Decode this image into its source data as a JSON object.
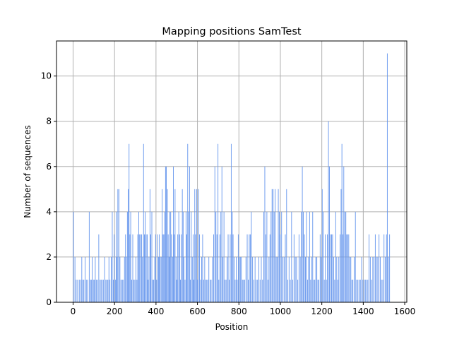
{
  "chart_data": {
    "type": "bar",
    "title": "Mapping positions SamTest",
    "xlabel": "Position",
    "ylabel": "Number of sequences",
    "xlim": [
      -80,
      1610
    ],
    "ylim": [
      0,
      11.55
    ],
    "xticks": [
      0,
      200,
      400,
      600,
      800,
      1000,
      1200,
      1400,
      1600
    ],
    "xtick_labels": [
      "0",
      "200",
      "400",
      "600",
      "800",
      "1000",
      "1200",
      "1400",
      "1600"
    ],
    "yticks": [
      0,
      2,
      4,
      6,
      8,
      10
    ],
    "ytick_labels": [
      "0",
      "2",
      "4",
      "6",
      "8",
      "10"
    ],
    "grid": true,
    "bar_color": "#6495ED",
    "bars": [
      [
        2,
        4
      ],
      [
        9,
        2
      ],
      [
        15,
        1
      ],
      [
        22,
        1
      ],
      [
        30,
        1
      ],
      [
        38,
        1
      ],
      [
        42,
        2
      ],
      [
        47,
        1
      ],
      [
        52,
        1
      ],
      [
        58,
        2
      ],
      [
        64,
        1
      ],
      [
        70,
        1
      ],
      [
        78,
        4
      ],
      [
        84,
        1
      ],
      [
        88,
        1
      ],
      [
        92,
        2
      ],
      [
        98,
        1
      ],
      [
        103,
        1
      ],
      [
        107,
        2
      ],
      [
        112,
        1
      ],
      [
        118,
        1
      ],
      [
        124,
        3
      ],
      [
        130,
        1
      ],
      [
        135,
        1
      ],
      [
        140,
        1
      ],
      [
        146,
        1
      ],
      [
        152,
        2
      ],
      [
        158,
        1
      ],
      [
        163,
        1
      ],
      [
        168,
        1
      ],
      [
        173,
        2
      ],
      [
        178,
        1
      ],
      [
        184,
        2
      ],
      [
        189,
        4
      ],
      [
        194,
        1
      ],
      [
        198,
        3
      ],
      [
        204,
        1
      ],
      [
        208,
        4
      ],
      [
        212,
        2
      ],
      [
        216,
        5
      ],
      [
        221,
        5
      ],
      [
        226,
        2
      ],
      [
        231,
        1
      ],
      [
        237,
        1
      ],
      [
        241,
        1
      ],
      [
        248,
        2
      ],
      [
        253,
        3
      ],
      [
        257,
        2
      ],
      [
        262,
        4
      ],
      [
        266,
        5
      ],
      [
        270,
        7
      ],
      [
        274,
        3
      ],
      [
        278,
        4
      ],
      [
        283,
        1
      ],
      [
        288,
        3
      ],
      [
        293,
        1
      ],
      [
        298,
        1
      ],
      [
        303,
        2
      ],
      [
        308,
        1
      ],
      [
        312,
        3
      ],
      [
        317,
        4
      ],
      [
        321,
        3
      ],
      [
        326,
        3
      ],
      [
        331,
        3
      ],
      [
        335,
        2
      ],
      [
        340,
        7
      ],
      [
        344,
        3
      ],
      [
        348,
        4
      ],
      [
        353,
        3
      ],
      [
        358,
        3
      ],
      [
        362,
        1
      ],
      [
        366,
        2
      ],
      [
        371,
        5
      ],
      [
        375,
        3
      ],
      [
        380,
        4
      ],
      [
        385,
        1
      ],
      [
        389,
        1
      ],
      [
        394,
        2
      ],
      [
        398,
        3
      ],
      [
        403,
        1
      ],
      [
        408,
        3
      ],
      [
        412,
        2
      ],
      [
        416,
        3
      ],
      [
        420,
        2
      ],
      [
        425,
        2
      ],
      [
        430,
        5
      ],
      [
        434,
        3
      ],
      [
        438,
        3
      ],
      [
        442,
        4
      ],
      [
        446,
        6
      ],
      [
        450,
        6
      ],
      [
        455,
        5
      ],
      [
        459,
        3
      ],
      [
        463,
        2
      ],
      [
        467,
        4
      ],
      [
        471,
        4
      ],
      [
        475,
        3
      ],
      [
        480,
        2
      ],
      [
        484,
        6
      ],
      [
        488,
        3
      ],
      [
        492,
        5
      ],
      [
        497,
        2
      ],
      [
        501,
        1
      ],
      [
        505,
        3
      ],
      [
        510,
        4
      ],
      [
        514,
        3
      ],
      [
        518,
        1
      ],
      [
        522,
        3
      ],
      [
        527,
        5
      ],
      [
        531,
        4
      ],
      [
        535,
        2
      ],
      [
        540,
        1
      ],
      [
        545,
        4
      ],
      [
        549,
        3
      ],
      [
        553,
        7
      ],
      [
        557,
        4
      ],
      [
        562,
        6
      ],
      [
        566,
        1
      ],
      [
        570,
        4
      ],
      [
        575,
        2
      ],
      [
        579,
        3
      ],
      [
        583,
        1
      ],
      [
        587,
        5
      ],
      [
        591,
        3
      ],
      [
        596,
        5
      ],
      [
        600,
        1
      ],
      [
        605,
        5
      ],
      [
        610,
        3
      ],
      [
        615,
        1
      ],
      [
        620,
        2
      ],
      [
        625,
        3
      ],
      [
        630,
        1
      ],
      [
        635,
        2
      ],
      [
        640,
        1
      ],
      [
        645,
        1
      ],
      [
        650,
        1
      ],
      [
        655,
        2
      ],
      [
        661,
        1
      ],
      [
        666,
        1
      ],
      [
        672,
        2
      ],
      [
        678,
        3
      ],
      [
        684,
        6
      ],
      [
        689,
        4
      ],
      [
        694,
        3
      ],
      [
        699,
        7
      ],
      [
        703,
        1
      ],
      [
        708,
        3
      ],
      [
        713,
        4
      ],
      [
        718,
        6
      ],
      [
        723,
        2
      ],
      [
        728,
        4
      ],
      [
        733,
        1
      ],
      [
        738,
        1
      ],
      [
        743,
        2
      ],
      [
        748,
        3
      ],
      [
        753,
        1
      ],
      [
        758,
        3
      ],
      [
        763,
        7
      ],
      [
        768,
        4
      ],
      [
        772,
        3
      ],
      [
        777,
        2
      ],
      [
        782,
        1
      ],
      [
        787,
        2
      ],
      [
        792,
        1
      ],
      [
        797,
        3
      ],
      [
        802,
        2
      ],
      [
        807,
        2
      ],
      [
        812,
        2
      ],
      [
        817,
        1
      ],
      [
        822,
        1
      ],
      [
        828,
        1
      ],
      [
        834,
        2
      ],
      [
        840,
        3
      ],
      [
        845,
        1
      ],
      [
        850,
        3
      ],
      [
        855,
        3
      ],
      [
        860,
        4
      ],
      [
        866,
        2
      ],
      [
        872,
        1
      ],
      [
        878,
        2
      ],
      [
        884,
        1
      ],
      [
        890,
        1
      ],
      [
        896,
        2
      ],
      [
        902,
        1
      ],
      [
        908,
        2
      ],
      [
        914,
        1
      ],
      [
        920,
        4
      ],
      [
        925,
        6
      ],
      [
        930,
        3
      ],
      [
        935,
        4
      ],
      [
        940,
        1
      ],
      [
        945,
        2
      ],
      [
        950,
        3
      ],
      [
        955,
        4
      ],
      [
        960,
        5
      ],
      [
        965,
        5
      ],
      [
        970,
        4
      ],
      [
        975,
        5
      ],
      [
        980,
        2
      ],
      [
        985,
        2
      ],
      [
        990,
        5
      ],
      [
        995,
        4
      ],
      [
        1000,
        3
      ],
      [
        1006,
        4
      ],
      [
        1012,
        2
      ],
      [
        1018,
        2
      ],
      [
        1024,
        3
      ],
      [
        1030,
        5
      ],
      [
        1036,
        1
      ],
      [
        1042,
        2
      ],
      [
        1048,
        1
      ],
      [
        1054,
        4
      ],
      [
        1060,
        1
      ],
      [
        1066,
        3
      ],
      [
        1072,
        2
      ],
      [
        1078,
        2
      ],
      [
        1084,
        1
      ],
      [
        1090,
        3
      ],
      [
        1096,
        2
      ],
      [
        1101,
        4
      ],
      [
        1106,
        6
      ],
      [
        1111,
        4
      ],
      [
        1116,
        3
      ],
      [
        1121,
        2
      ],
      [
        1126,
        4
      ],
      [
        1131,
        1
      ],
      [
        1136,
        2
      ],
      [
        1141,
        4
      ],
      [
        1146,
        1
      ],
      [
        1151,
        2
      ],
      [
        1156,
        4
      ],
      [
        1161,
        1
      ],
      [
        1166,
        1
      ],
      [
        1171,
        2
      ],
      [
        1176,
        2
      ],
      [
        1181,
        1
      ],
      [
        1186,
        1
      ],
      [
        1192,
        3
      ],
      [
        1197,
        2
      ],
      [
        1202,
        5
      ],
      [
        1207,
        4
      ],
      [
        1212,
        1
      ],
      [
        1217,
        3
      ],
      [
        1222,
        1
      ],
      [
        1227,
        3
      ],
      [
        1232,
        8
      ],
      [
        1237,
        6
      ],
      [
        1242,
        3
      ],
      [
        1247,
        3
      ],
      [
        1252,
        3
      ],
      [
        1257,
        2
      ],
      [
        1262,
        1
      ],
      [
        1267,
        4
      ],
      [
        1272,
        2
      ],
      [
        1277,
        1
      ],
      [
        1282,
        2
      ],
      [
        1288,
        3
      ],
      [
        1293,
        5
      ],
      [
        1297,
        7
      ],
      [
        1302,
        3
      ],
      [
        1306,
        6
      ],
      [
        1311,
        4
      ],
      [
        1316,
        4
      ],
      [
        1320,
        3
      ],
      [
        1325,
        3
      ],
      [
        1330,
        3
      ],
      [
        1335,
        2
      ],
      [
        1340,
        2
      ],
      [
        1345,
        1
      ],
      [
        1350,
        1
      ],
      [
        1356,
        2
      ],
      [
        1362,
        4
      ],
      [
        1368,
        1
      ],
      [
        1374,
        1
      ],
      [
        1380,
        1
      ],
      [
        1386,
        1
      ],
      [
        1392,
        2
      ],
      [
        1398,
        1
      ],
      [
        1404,
        1
      ],
      [
        1410,
        1
      ],
      [
        1416,
        1
      ],
      [
        1422,
        1
      ],
      [
        1428,
        3
      ],
      [
        1434,
        2
      ],
      [
        1440,
        1
      ],
      [
        1446,
        2
      ],
      [
        1452,
        2
      ],
      [
        1458,
        3
      ],
      [
        1464,
        2
      ],
      [
        1470,
        2
      ],
      [
        1476,
        3
      ],
      [
        1482,
        2
      ],
      [
        1488,
        1
      ],
      [
        1494,
        1
      ],
      [
        1500,
        3
      ],
      [
        1506,
        2
      ],
      [
        1512,
        3
      ],
      [
        1516,
        11
      ],
      [
        1521,
        2
      ],
      [
        1527,
        3
      ]
    ]
  }
}
